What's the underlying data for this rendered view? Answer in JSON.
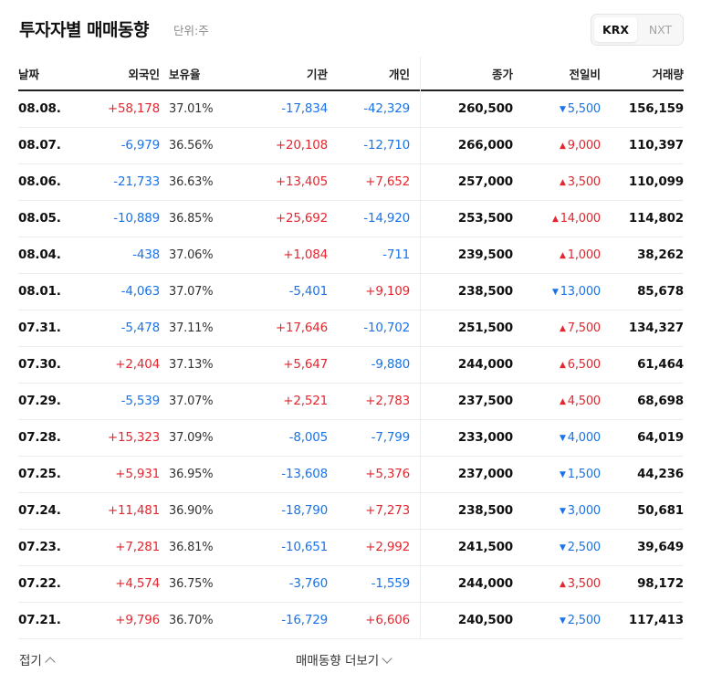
{
  "header": {
    "title": "투자자별 매매동향",
    "unit": "단위:주",
    "tabs": [
      {
        "label": "KRX",
        "active": true
      },
      {
        "label": "NXT",
        "active": false
      }
    ]
  },
  "columns": [
    "날짜",
    "외국인",
    "보유율",
    "기관",
    "개인",
    "종가",
    "전일비",
    "거래량"
  ],
  "colors": {
    "up": "#e4272f",
    "down": "#1a73e8"
  },
  "rows": [
    {
      "date": "08.08.",
      "foreign": "+58,178",
      "ratio": "37.01%",
      "inst": "-17,834",
      "indiv": "-42,329",
      "close": "260,500",
      "change": "5,500",
      "change_dir": "down",
      "volume": "156,159"
    },
    {
      "date": "08.07.",
      "foreign": "-6,979",
      "ratio": "36.56%",
      "inst": "+20,108",
      "indiv": "-12,710",
      "close": "266,000",
      "change": "9,000",
      "change_dir": "up",
      "volume": "110,397"
    },
    {
      "date": "08.06.",
      "foreign": "-21,733",
      "ratio": "36.63%",
      "inst": "+13,405",
      "indiv": "+7,652",
      "close": "257,000",
      "change": "3,500",
      "change_dir": "up",
      "volume": "110,099"
    },
    {
      "date": "08.05.",
      "foreign": "-10,889",
      "ratio": "36.85%",
      "inst": "+25,692",
      "indiv": "-14,920",
      "close": "253,500",
      "change": "14,000",
      "change_dir": "up",
      "volume": "114,802"
    },
    {
      "date": "08.04.",
      "foreign": "-438",
      "ratio": "37.06%",
      "inst": "+1,084",
      "indiv": "-711",
      "close": "239,500",
      "change": "1,000",
      "change_dir": "up",
      "volume": "38,262"
    },
    {
      "date": "08.01.",
      "foreign": "-4,063",
      "ratio": "37.07%",
      "inst": "-5,401",
      "indiv": "+9,109",
      "close": "238,500",
      "change": "13,000",
      "change_dir": "down",
      "volume": "85,678"
    },
    {
      "date": "07.31.",
      "foreign": "-5,478",
      "ratio": "37.11%",
      "inst": "+17,646",
      "indiv": "-10,702",
      "close": "251,500",
      "change": "7,500",
      "change_dir": "up",
      "volume": "134,327"
    },
    {
      "date": "07.30.",
      "foreign": "+2,404",
      "ratio": "37.13%",
      "inst": "+5,647",
      "indiv": "-9,880",
      "close": "244,000",
      "change": "6,500",
      "change_dir": "up",
      "volume": "61,464"
    },
    {
      "date": "07.29.",
      "foreign": "-5,539",
      "ratio": "37.07%",
      "inst": "+2,521",
      "indiv": "+2,783",
      "close": "237,500",
      "change": "4,500",
      "change_dir": "up",
      "volume": "68,698"
    },
    {
      "date": "07.28.",
      "foreign": "+15,323",
      "ratio": "37.09%",
      "inst": "-8,005",
      "indiv": "-7,799",
      "close": "233,000",
      "change": "4,000",
      "change_dir": "down",
      "volume": "64,019"
    },
    {
      "date": "07.25.",
      "foreign": "+5,931",
      "ratio": "36.95%",
      "inst": "-13,608",
      "indiv": "+5,376",
      "close": "237,000",
      "change": "1,500",
      "change_dir": "down",
      "volume": "44,236"
    },
    {
      "date": "07.24.",
      "foreign": "+11,481",
      "ratio": "36.90%",
      "inst": "-18,790",
      "indiv": "+7,273",
      "close": "238,500",
      "change": "3,000",
      "change_dir": "down",
      "volume": "50,681"
    },
    {
      "date": "07.23.",
      "foreign": "+7,281",
      "ratio": "36.81%",
      "inst": "-10,651",
      "indiv": "+2,992",
      "close": "241,500",
      "change": "2,500",
      "change_dir": "down",
      "volume": "39,649"
    },
    {
      "date": "07.22.",
      "foreign": "+4,574",
      "ratio": "36.75%",
      "inst": "-3,760",
      "indiv": "-1,559",
      "close": "244,000",
      "change": "3,500",
      "change_dir": "up",
      "volume": "98,172"
    },
    {
      "date": "07.21.",
      "foreign": "+9,796",
      "ratio": "36.70%",
      "inst": "-16,729",
      "indiv": "+6,606",
      "close": "240,500",
      "change": "2,500",
      "change_dir": "down",
      "volume": "117,413"
    }
  ],
  "footer": {
    "collapse_label": "접기",
    "more_label": "매매동향 더보기"
  }
}
